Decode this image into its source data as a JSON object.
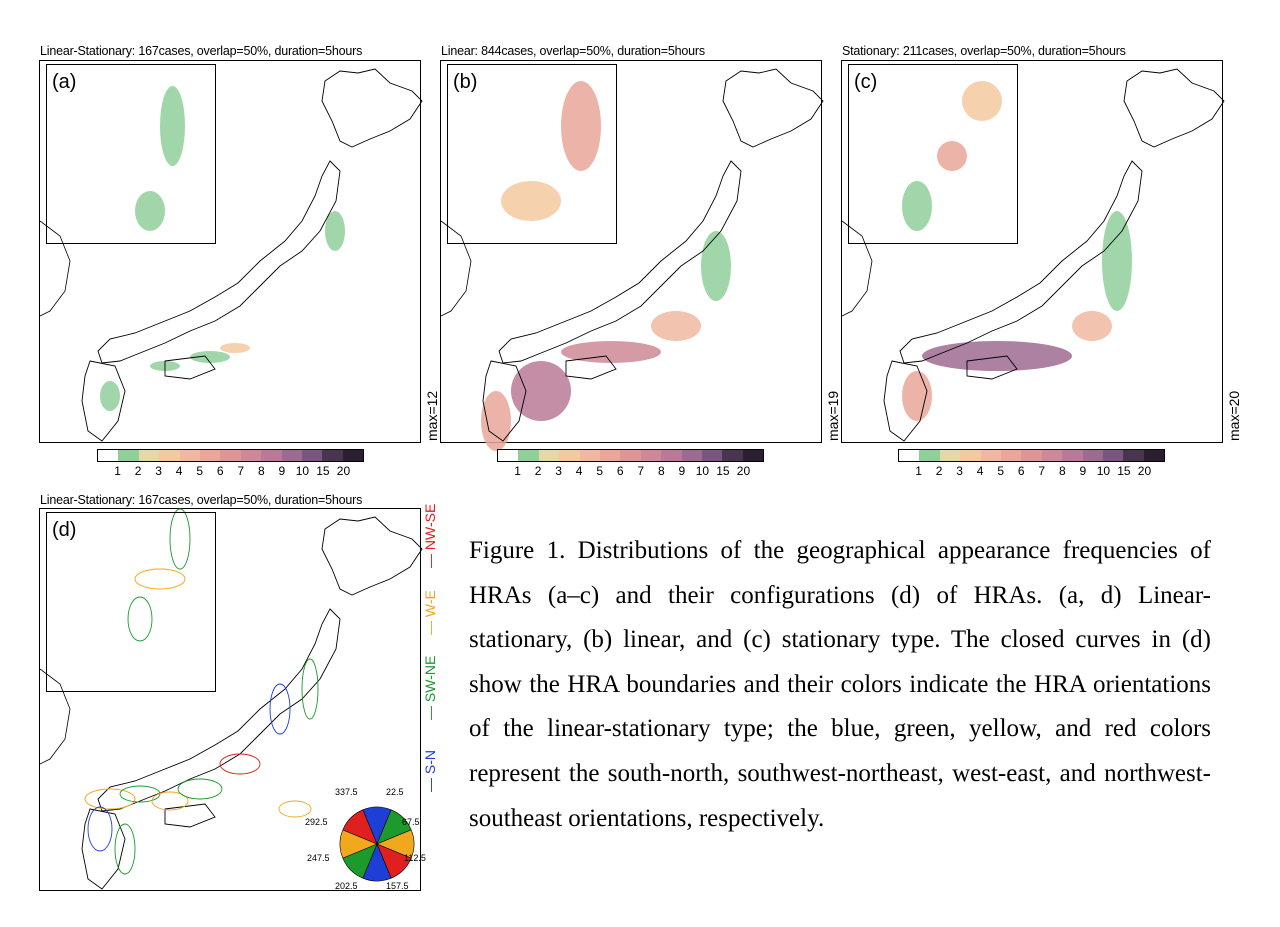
{
  "panels": [
    {
      "id": "a",
      "title": "Linear-Stationary: 167cases, overlap=50%, duration=5hours",
      "label": "(a)",
      "max": "max=12"
    },
    {
      "id": "b",
      "title": "Linear: 844cases, overlap=50%, duration=5hours",
      "label": "(b)",
      "max": "max=19"
    },
    {
      "id": "c",
      "title": "Stationary: 211cases, overlap=50%, duration=5hours",
      "label": "(c)",
      "max": "max=20"
    },
    {
      "id": "d",
      "title": "Linear-Stationary: 167cases, overlap=50%, duration=5hours",
      "label": "(d)"
    }
  ],
  "colorbar": {
    "ticks": [
      "1",
      "2",
      "3",
      "4",
      "5",
      "6",
      "7",
      "8",
      "9",
      "10",
      "15",
      "20"
    ],
    "colors": [
      "#ffffff",
      "#8fcf9a",
      "#e6d7a8",
      "#f3c9a0",
      "#f0b8a0",
      "#e9a79a",
      "#dc9696",
      "#cc8a98",
      "#b87a96",
      "#9e6b90",
      "#7a5580",
      "#4a3550",
      "#2a1f2e"
    ]
  },
  "orientation_legend": [
    {
      "label": "S-N",
      "color": "#1e3fd6"
    },
    {
      "label": "SW-NE",
      "color": "#1c9a2c"
    },
    {
      "label": "W-E",
      "color": "#f0a81c"
    },
    {
      "label": "NW-SE",
      "color": "#e0201e"
    }
  ],
  "wheel": {
    "labels": [
      "337.5",
      "22.5",
      "67.5",
      "112.5",
      "157.5",
      "202.5",
      "247.5",
      "292.5"
    ],
    "colors": [
      "#1e3fd6",
      "#1c9a2c",
      "#f0a81c",
      "#e0201e",
      "#1e3fd6",
      "#1c9a2c",
      "#f0a81c",
      "#e0201e"
    ]
  },
  "caption": "Figure 1. Distributions of the geographical appearance frequencies of HRAs (a–c) and their configurations (d) of HRAs. (a, d) Linear-stationary, (b) linear, and (c) stationary type. The closed curves in (d) show the HRA boundaries and their colors indicate the HRA orientations of the linear-stationary type; the blue, green, yellow, and red colors represent the south-north, southwest-northeast, west-east, and northwest-southeast orientations, respectively."
}
